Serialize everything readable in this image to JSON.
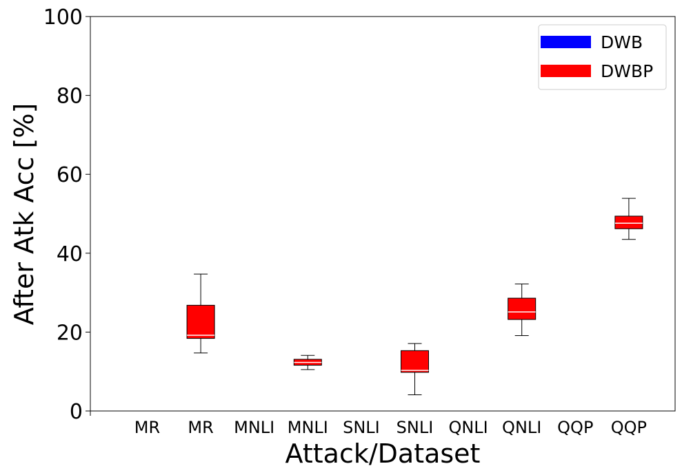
{
  "chart_data": {
    "type": "box",
    "title": "",
    "xlabel": "Attack/Dataset",
    "ylabel": "After Atk Acc [%]",
    "ylim": [
      0,
      100
    ],
    "yticks": [
      0,
      20,
      40,
      60,
      80,
      100
    ],
    "categories": [
      "MR",
      "MR",
      "MNLI",
      "MNLI",
      "SNLI",
      "SNLI",
      "QNLI",
      "QNLI",
      "QQP",
      "QQP"
    ],
    "legend": {
      "position": "top-right",
      "entries": [
        {
          "name": "DWB",
          "color": "#0000ff"
        },
        {
          "name": "DWBP",
          "color": "#ff0000"
        }
      ]
    },
    "series": [
      {
        "name": "DWB",
        "color": "#0000ff",
        "boxes": []
      },
      {
        "name": "DWBP",
        "color": "#ff0000",
        "boxes": [
          {
            "category_index": 1,
            "label": "MR",
            "min": 14.7,
            "q1": 18.4,
            "median": 19.2,
            "q3": 26.8,
            "max": 34.7
          },
          {
            "category_index": 3,
            "label": "MNLI",
            "min": 10.5,
            "q1": 11.6,
            "median": 12.3,
            "q3": 13.1,
            "max": 14.1
          },
          {
            "category_index": 5,
            "label": "SNLI",
            "min": 4.1,
            "q1": 9.8,
            "median": 10.3,
            "q3": 15.3,
            "max": 17.1
          },
          {
            "category_index": 7,
            "label": "QNLI",
            "min": 19.1,
            "q1": 23.2,
            "median": 25.1,
            "q3": 28.6,
            "max": 32.2
          },
          {
            "category_index": 9,
            "label": "QQP",
            "min": 43.5,
            "q1": 46.2,
            "median": 47.6,
            "q3": 49.4,
            "max": 53.9
          }
        ]
      }
    ],
    "grid": false
  }
}
